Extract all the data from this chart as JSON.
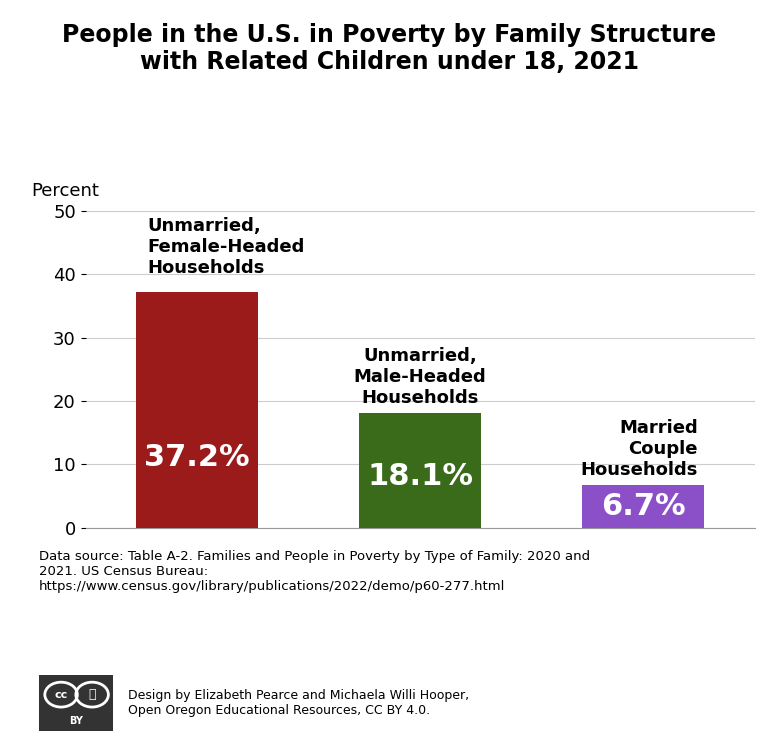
{
  "title": "People in the U.S. in Poverty by Family Structure\nwith Related Children under 18, 2021",
  "ylabel": "Percent",
  "categories": [
    "Unmarried,\nFemale-Headed\nHouseholds",
    "Unmarried,\nMale-Headed\nHouseholds",
    "Married\nCouple\nHouseholds"
  ],
  "values": [
    37.2,
    18.1,
    6.7
  ],
  "bar_colors": [
    "#9B1A1A",
    "#3A6B1A",
    "#8B4FC8"
  ],
  "value_labels": [
    "37.2%",
    "18.1%",
    "6.7%"
  ],
  "ylim": [
    0,
    50
  ],
  "yticks": [
    0,
    10,
    20,
    30,
    40,
    50
  ],
  "background_color": "#ffffff",
  "title_fontsize": 17,
  "label_fontsize": 13,
  "value_fontsize": 22,
  "datasource_text": "Data source: Table A-2. Families and People in Poverty by Type of Family: 2020 and\n2021. US Census Bureau:\nhttps://www.census.gov/library/publications/2022/demo/p60-277.html",
  "credit_text": "Design by Elizabeth Pearce and Michaela Willi Hooper,\nOpen Oregon Educational Resources, CC BY 4.0."
}
